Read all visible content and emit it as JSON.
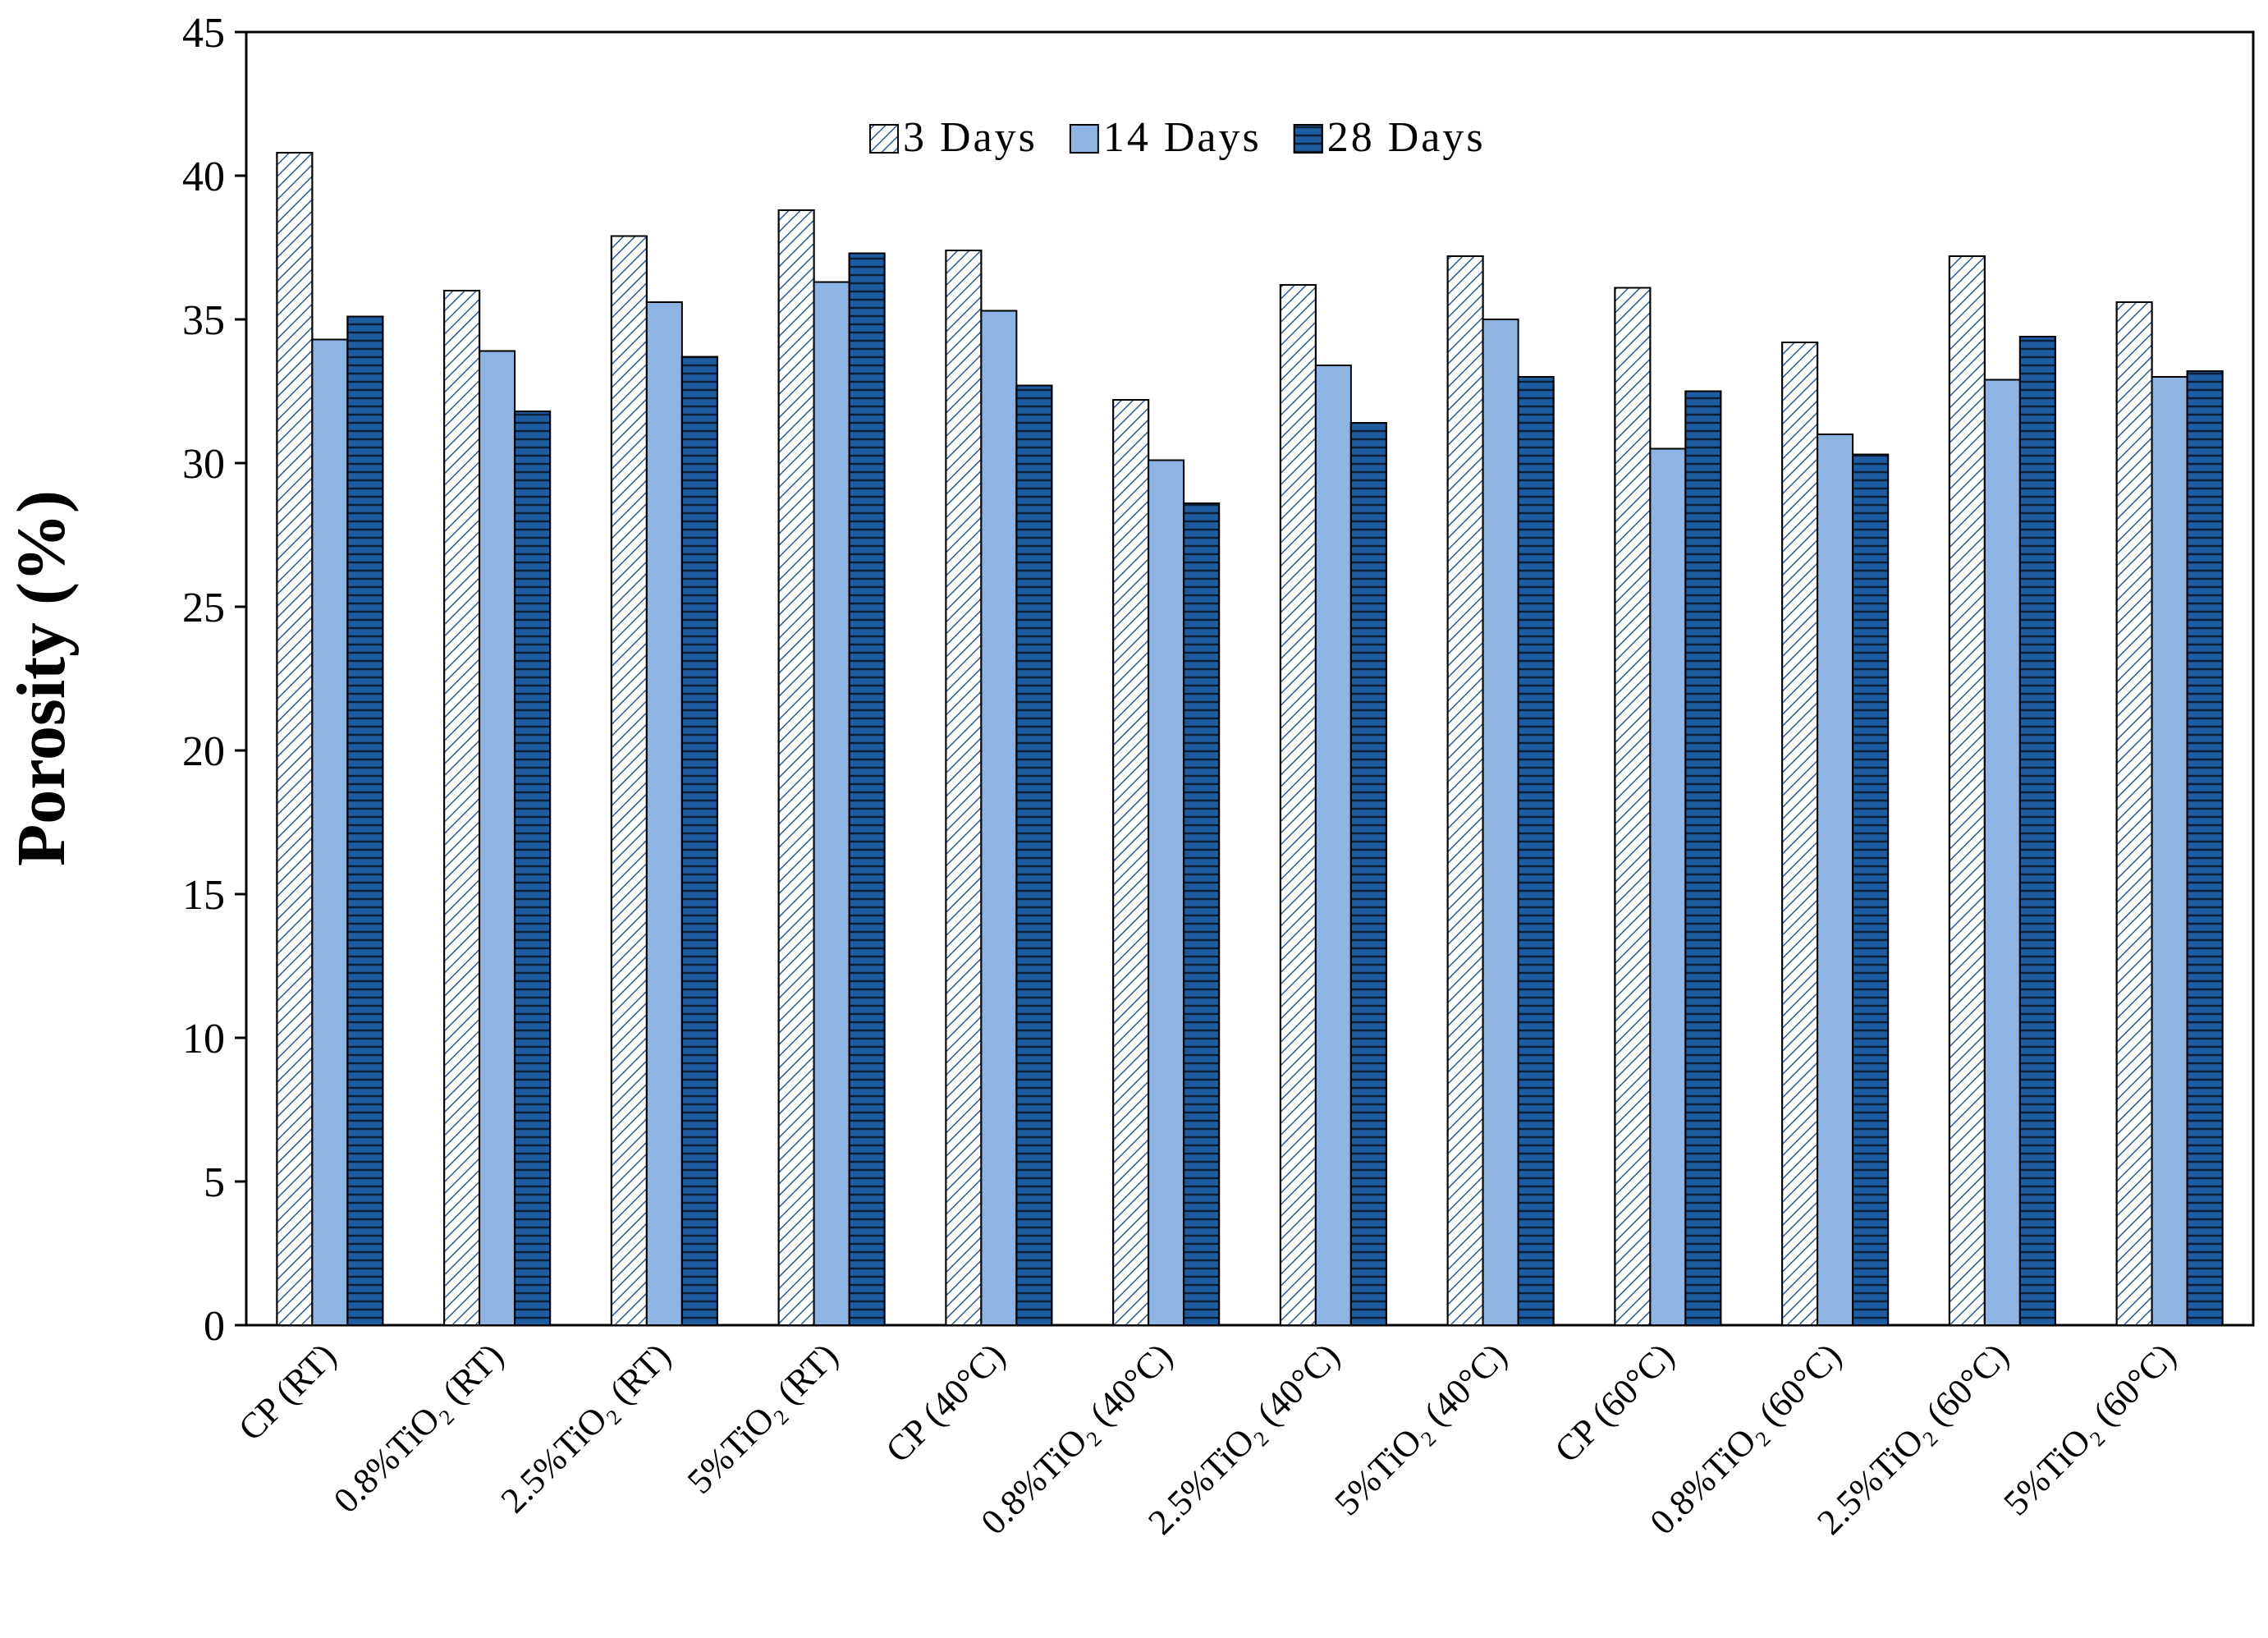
{
  "chart_data": {
    "type": "bar",
    "y_label": "Porosity (%)",
    "categories": [
      "CP (RT)",
      "0.8%TiO₂ (RT)",
      "2.5%TiO₂ (RT)",
      "5%TiO₂ (RT)",
      "CP (40°C)",
      "0.8%TiO₂ (40°C)",
      "2.5%TiO₂ (40°C)",
      "5%TiO₂ (40°C)",
      "CP (60°C)",
      "0.8%TiO₂ (60°C)",
      "2.5%TiO₂ (60°C)",
      "5%TiO₂ (60°C)"
    ],
    "series": [
      {
        "name": "3 Days",
        "color": "#ffffff",
        "pattern": "diagonal",
        "values": [
          40.8,
          36.0,
          37.9,
          38.8,
          37.4,
          32.2,
          36.2,
          37.2,
          36.1,
          34.2,
          37.2,
          35.6
        ]
      },
      {
        "name": "14 Days",
        "color": "#8db4e2",
        "pattern": "none",
        "values": [
          34.3,
          33.9,
          35.6,
          36.3,
          35.3,
          30.1,
          33.4,
          35.0,
          30.5,
          31.0,
          32.9,
          33.0
        ]
      },
      {
        "name": "28 Days",
        "color": "#1f5da0",
        "pattern": "horizontal",
        "values": [
          35.1,
          31.8,
          33.7,
          37.3,
          32.7,
          28.6,
          31.4,
          33.0,
          32.5,
          30.3,
          34.4,
          33.2
        ]
      }
    ],
    "ylim": [
      0,
      45
    ],
    "yticks": [
      0,
      5,
      10,
      15,
      20,
      25,
      30,
      35,
      40,
      45
    ],
    "legend": "top"
  }
}
